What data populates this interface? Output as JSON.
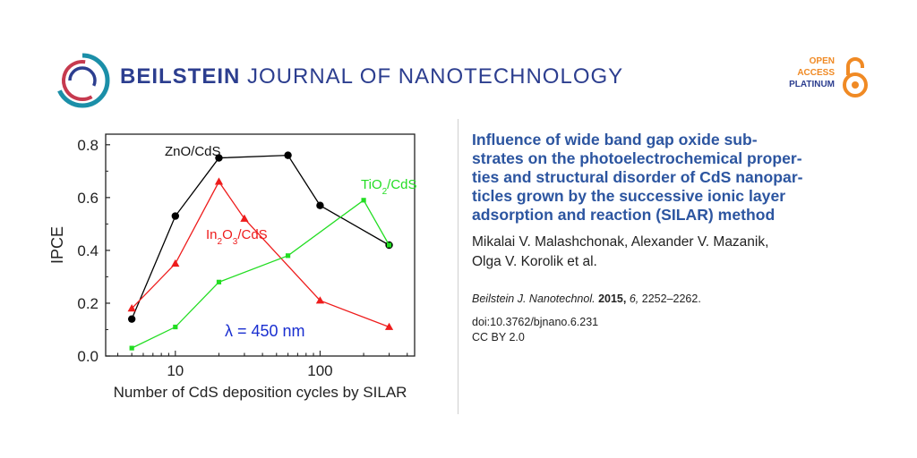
{
  "header": {
    "journal_bold": "BEILSTEIN",
    "journal_rest": " JOURNAL OF NANOTECHNOLOGY",
    "oa_line1": "OPEN",
    "oa_line2": "ACCESS",
    "oa_line3": "PLATINUM"
  },
  "colors": {
    "brand_blue": "#2c3e8f",
    "title_blue": "#2c55a0",
    "oa_orange": "#f08a24",
    "logo_teal": "#1b8fa8",
    "logo_red": "#c63a4f"
  },
  "icons": {
    "logo": "beilstein-ring-logo-icon",
    "open_access": "open-lock-icon"
  },
  "article": {
    "title_lines": [
      "Influence of wide band gap oxide sub-",
      "strates on the photoelectrochemical proper-",
      "ties and structural disorder of CdS nanopar-",
      "ticles grown by the successive ionic layer",
      "adsorption and reaction (SILAR) method"
    ],
    "author_lines": [
      "Mikalai V. Malashchonak, Alexander V. Mazanik,",
      "Olga V. Korolik et al."
    ],
    "journal": "Beilstein J. Nanotechnol.",
    "year": "2015,",
    "volume": "6,",
    "pages": "2252–2262.",
    "doi": "doi:10.3762/bjnano.6.231",
    "license": "CC BY 2.0"
  },
  "chart_data": {
    "type": "line",
    "xlabel": "Number of CdS deposition cycles by SILAR",
    "ylabel": "IPCE",
    "x_scale": "log",
    "xlim": [
      3.3,
      450
    ],
    "ylim": [
      0,
      0.84
    ],
    "x_ticks": [
      10,
      100
    ],
    "y_ticks": [
      0.0,
      0.2,
      0.4,
      0.6,
      0.8
    ],
    "grid": false,
    "annotation": "λ = 450 nm",
    "annotation_color": "#1a2fd0",
    "series": [
      {
        "name": "ZnO/CdS",
        "name_html": "ZnO/CdS",
        "color": "#000000",
        "marker": "circle",
        "label_color": "#111111",
        "x": [
          5,
          10,
          20,
          60,
          100,
          300
        ],
        "y": [
          0.14,
          0.53,
          0.75,
          0.76,
          0.57,
          0.42
        ]
      },
      {
        "name": "In2O3/CdS",
        "name_html": "In<tspan baseline-shift='sub' font-size='10'>2</tspan>O<tspan baseline-shift='sub' font-size='10'>3</tspan>/CdS",
        "color": "#ee1c1c",
        "marker": "triangle",
        "label_color": "#ee1c1c",
        "x": [
          5,
          10,
          20,
          30,
          100,
          300
        ],
        "y": [
          0.18,
          0.35,
          0.66,
          0.52,
          0.21,
          0.11
        ]
      },
      {
        "name": "TiO2/CdS",
        "name_html": "TiO<tspan baseline-shift='sub' font-size='10'>2</tspan>/CdS",
        "color": "#22dd22",
        "marker": "square",
        "label_color": "#22dd22",
        "x": [
          5,
          10,
          20,
          60,
          200,
          300
        ],
        "y": [
          0.03,
          0.11,
          0.28,
          0.38,
          0.59,
          0.42
        ]
      }
    ]
  }
}
